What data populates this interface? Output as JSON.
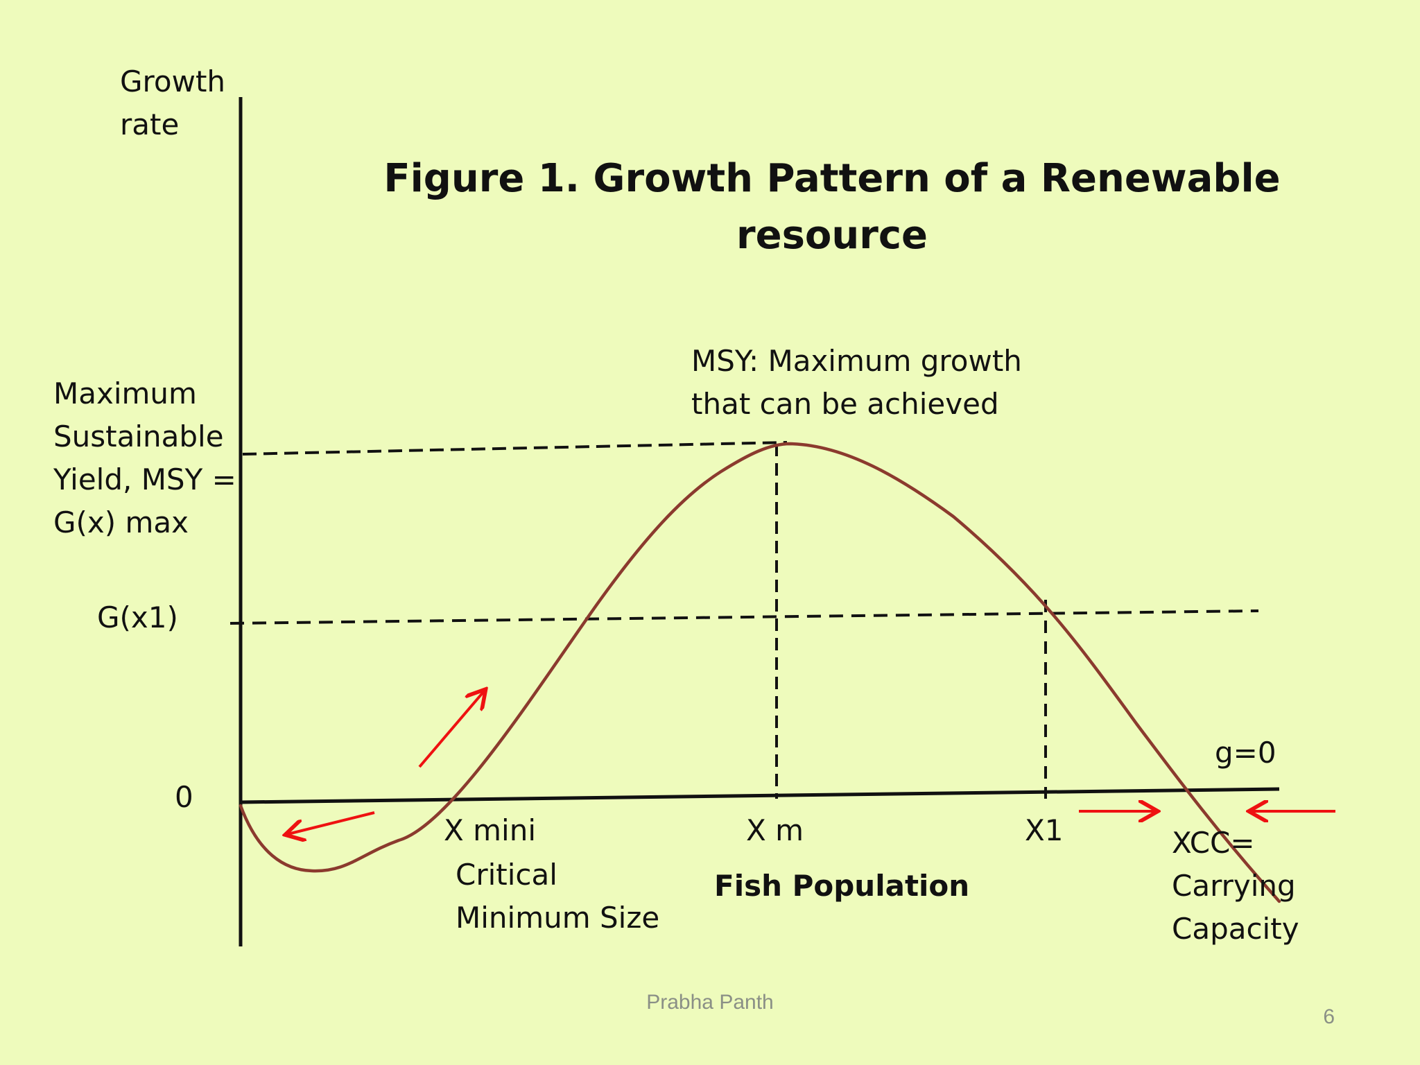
{
  "title": {
    "line1": "Figure 1. Growth Pattern of a Renewable",
    "line2": "resource"
  },
  "y_axis": {
    "label_line1": "Growth",
    "label_line2": "rate",
    "zero": "0",
    "msy_label": [
      "Maximum",
      "Sustainable",
      "Yield, MSY =",
      "G(x) max"
    ],
    "gx1_label": "G(x1)"
  },
  "x_axis": {
    "label": "Fish Population",
    "g_zero": "g=0",
    "x_mini": "X mini",
    "critical": [
      "Critical",
      "Minimum Size"
    ],
    "x_m": "X m",
    "x1": "X1",
    "xcc": [
      "XCC=",
      "Carrying",
      "Capacity"
    ]
  },
  "annotations": {
    "msy_note": [
      "MSY: Maximum growth",
      "that can be achieved"
    ]
  },
  "colors": {
    "background": "#eefbbc",
    "curve": "#8b3a2e",
    "arrows": "#ee1111",
    "axes": "#111111"
  },
  "footer": {
    "author": "Prabha Panth",
    "page_number": "6"
  }
}
